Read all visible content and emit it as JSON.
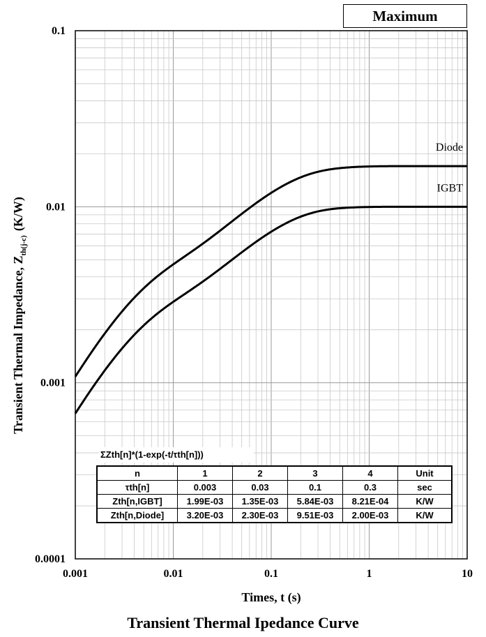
{
  "header_box": {
    "label": "Maximum"
  },
  "caption": "Transient Thermal Ipedance Curve",
  "chart_data": {
    "type": "line",
    "xscale": "log",
    "yscale": "log",
    "xlim": [
      0.001,
      10
    ],
    "ylim": [
      0.0001,
      0.1
    ],
    "xlabel": "Times, t (s)",
    "ylabel": "Transient Thermal Impedance, Z",
    "ylabel_sub": "th(j-c)",
    "ylabel_unit": "(K/W)",
    "grid": true,
    "x_ticks": [
      {
        "value": 0.001,
        "label": "0.001"
      },
      {
        "value": 0.01,
        "label": "0.01"
      },
      {
        "value": 0.1,
        "label": "0.1"
      },
      {
        "value": 1,
        "label": "1"
      },
      {
        "value": 10,
        "label": "10"
      }
    ],
    "y_ticks": [
      {
        "value": 0.0001,
        "label": "0.0001"
      },
      {
        "value": 0.001,
        "label": "0.001"
      },
      {
        "value": 0.01,
        "label": "0.01"
      },
      {
        "value": 0.1,
        "label": "0.1"
      }
    ],
    "series": [
      {
        "name": "Diode",
        "tau": [
          0.003,
          0.03,
          0.1,
          0.3
        ],
        "zth": [
          0.0032,
          0.0023,
          0.00951,
          0.002
        ]
      },
      {
        "name": "IGBT",
        "tau": [
          0.003,
          0.03,
          0.1,
          0.3
        ],
        "zth": [
          0.00199,
          0.00135,
          0.00584,
          0.000821
        ]
      }
    ]
  },
  "param_table": {
    "formula": "ΣZth[n]*(1-exp(-t/τth[n]))",
    "header": [
      "n",
      "1",
      "2",
      "3",
      "4",
      "Unit"
    ],
    "rows": [
      [
        "τth[n]",
        "0.003",
        "0.03",
        "0.1",
        "0.3",
        "sec"
      ],
      [
        "Zth[n,IGBT]",
        "1.99E-03",
        "1.35E-03",
        "5.84E-03",
        "8.21E-04",
        "K/W"
      ],
      [
        "Zth[n,Diode]",
        "3.20E-03",
        "2.30E-03",
        "9.51E-03",
        "2.00E-03",
        "K/W"
      ]
    ]
  }
}
